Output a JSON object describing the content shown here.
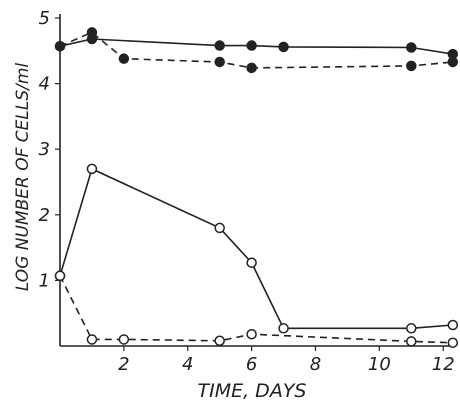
{
  "chart_data": {
    "type": "line",
    "xlabel": "TIME, DAYS",
    "ylabel": "LOG NUMBER OF CELLS/ml",
    "xlim": [
      0,
      12.4
    ],
    "ylim": [
      0,
      5
    ],
    "x_ticks": [
      "2",
      "4",
      "6",
      "8",
      "10",
      "12"
    ],
    "y_ticks": [
      "1",
      "2",
      "3",
      "4",
      "5"
    ],
    "grid": false,
    "legend": "none",
    "series": [
      {
        "marker": "filled",
        "dash": "solid",
        "x": [
          0,
          1,
          5,
          6,
          7,
          11,
          12.3
        ],
        "y": [
          4.57,
          4.68,
          4.58,
          4.58,
          4.56,
          4.55,
          4.45
        ]
      },
      {
        "marker": "filled",
        "dash": "dashed",
        "x": [
          0,
          1,
          2,
          5,
          6,
          11,
          12.3
        ],
        "y": [
          4.57,
          4.78,
          4.38,
          4.33,
          4.24,
          4.27,
          4.33
        ]
      },
      {
        "marker": "open",
        "dash": "solid",
        "x": [
          0,
          1,
          5,
          6,
          7,
          11,
          12.3
        ],
        "y": [
          1.07,
          2.7,
          1.8,
          1.27,
          0.27,
          0.27,
          0.32
        ]
      },
      {
        "marker": "open",
        "dash": "dashed",
        "x": [
          0,
          1,
          2,
          5,
          6,
          11,
          12.3
        ],
        "y": [
          1.07,
          0.1,
          0.1,
          0.08,
          0.18,
          0.07,
          0.05
        ]
      }
    ],
    "colors": {
      "ink": "#222222",
      "background": "#ffffff"
    }
  }
}
